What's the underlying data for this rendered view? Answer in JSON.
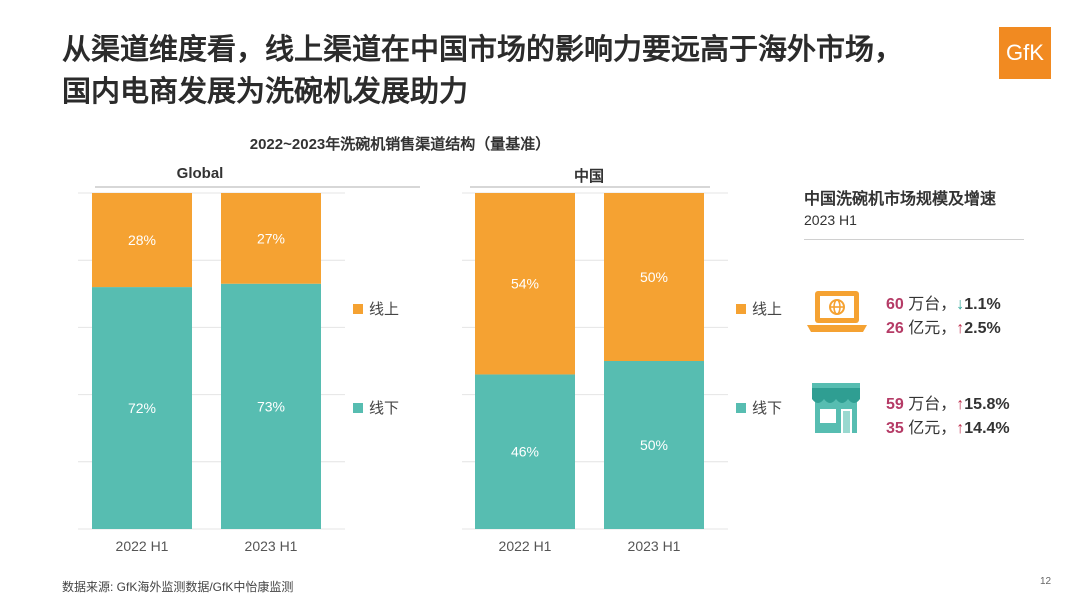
{
  "title_line1": "从渠道维度看，线上渠道在中国市场的影响力要远高于海外市场，",
  "title_line2": "国内电商发展为洗碗机发展助力",
  "logo_text": "GfK",
  "chart_data": {
    "type": "bar",
    "stacked": true,
    "title": "2022~2023年洗碗机销售渠道结构（量基准）",
    "categories": [
      "2022 H1",
      "2023 H1"
    ],
    "panels": [
      {
        "name": "Global",
        "series": [
          {
            "name": "线上",
            "values": [
              28,
              27
            ]
          },
          {
            "name": "线下",
            "values": [
              72,
              73
            ]
          }
        ]
      },
      {
        "name": "中国",
        "series": [
          {
            "name": "线上",
            "values": [
              54,
              50
            ]
          },
          {
            "name": "线下",
            "values": [
              46,
              50
            ]
          }
        ]
      }
    ],
    "ylim": [
      0,
      100
    ],
    "unit": "%",
    "colors": {
      "线上": "#f5a232",
      "线下": "#57bdb1"
    },
    "legend": [
      "线上",
      "线下"
    ]
  },
  "market": {
    "title": "中国洗碗机市场规模及增速",
    "period": "2023 H1",
    "online": {
      "icon": "laptop-globe-icon",
      "volume_value": "60",
      "volume_unit": "万台，",
      "volume_trend": "down",
      "volume_growth": "1.1%",
      "value_value": "26",
      "value_unit": "亿元，",
      "value_trend": "up",
      "value_growth": "2.5%"
    },
    "offline": {
      "icon": "store-icon",
      "volume_value": "59",
      "volume_unit": "万台，",
      "volume_trend": "up",
      "volume_growth": "15.8%",
      "value_value": "35",
      "value_unit": "亿元，",
      "value_trend": "up",
      "value_growth": "14.4%"
    },
    "colors": {
      "number": "#b53b66",
      "up_arrow": "#c0314f",
      "down_arrow": "#2fa89a",
      "icon": "#f5a232",
      "icon_alt": "#57bdb1"
    }
  },
  "footer": "数据来源: GfK海外监测数据/GfK中怡康监测",
  "page_number": "12"
}
